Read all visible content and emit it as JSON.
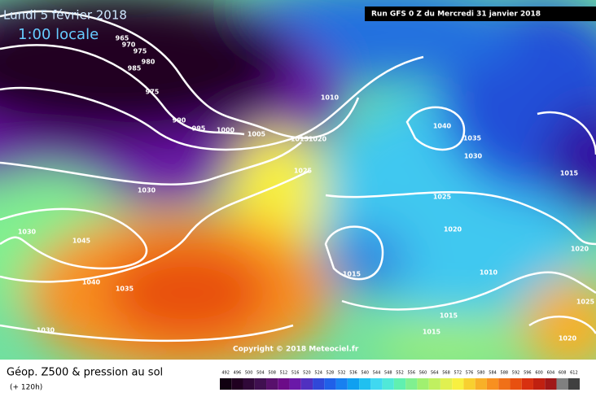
{
  "header": {
    "date": "Lundi 5 février 2018",
    "time": "1:00 locale",
    "run": "Run GFS 0 Z du Mercredi 31 janvier 2018"
  },
  "copyright": "Copyright © 2018 Meteociel.fr",
  "legend": {
    "title": "Géop. Z500 & pression au sol",
    "lead": "(+ 120h)",
    "scale": [
      "492",
      "496",
      "500",
      "504",
      "508",
      "512",
      "516",
      "520",
      "524",
      "528",
      "532",
      "536",
      "540",
      "544",
      "548",
      "552",
      "556",
      "560",
      "564",
      "568",
      "572",
      "576",
      "580",
      "584",
      "588",
      "592",
      "596",
      "600",
      "604",
      "608",
      "612"
    ],
    "colors": [
      "#100010",
      "#200020",
      "#300838",
      "#401050",
      "#58106c",
      "#6c0c88",
      "#6a18a8",
      "#5030c0",
      "#3048d8",
      "#2060e8",
      "#1880f0",
      "#10a0f0",
      "#20c0f0",
      "#40d8f0",
      "#50e8d8",
      "#60f0b0",
      "#80f090",
      "#a0f070",
      "#c0f060",
      "#e0f050",
      "#f8f040",
      "#f8d030",
      "#f8b028",
      "#f89020",
      "#f07018",
      "#e85010",
      "#d83010",
      "#c02010",
      "#a01818",
      "#808080",
      "#404040"
    ]
  },
  "isobars": [
    "965",
    "970",
    "975",
    "980",
    "985",
    "975",
    "990",
    "995",
    "1000",
    "1005",
    "1010",
    "1015",
    "1020",
    "1025",
    "1030",
    "1030",
    "1045",
    "1040",
    "1035",
    "1030",
    "1040",
    "1035",
    "1030",
    "1025",
    "1020",
    "1015",
    "1010",
    "1015",
    "1015",
    "1020",
    "1015",
    "1025",
    "1020"
  ]
}
